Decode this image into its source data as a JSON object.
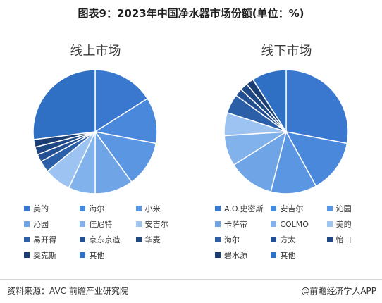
{
  "title": "图表9：2023年中国净水器市场份额(单位：%)",
  "footer": {
    "source": "资料来源：AVC 前瞻产业研究院",
    "brand": "@前瞻经济学人APP"
  },
  "chart_data": [
    {
      "type": "pie",
      "title": "线上市场",
      "legend_columns": 3,
      "slices": [
        {
          "label": "美的",
          "value": 16,
          "color": "#3a78d0"
        },
        {
          "label": "海尔",
          "value": 12,
          "color": "#4a88db"
        },
        {
          "label": "小米",
          "value": 12,
          "color": "#5b96e2"
        },
        {
          "label": "沁园",
          "value": 10,
          "color": "#6fa4e7"
        },
        {
          "label": "佳尼特",
          "value": 7,
          "color": "#82b2ec"
        },
        {
          "label": "安吉尔",
          "value": 7,
          "color": "#9cc3f2"
        },
        {
          "label": "易开得",
          "value": 3,
          "color": "#2b5fa8"
        },
        {
          "label": "京东京造",
          "value": 2,
          "color": "#244f92"
        },
        {
          "label": "华麦",
          "value": 2,
          "color": "#1f4783"
        },
        {
          "label": "奥克斯",
          "value": 2,
          "color": "#1a3e74"
        },
        {
          "label": "其他",
          "value": 27,
          "color": "#2f6fc4"
        }
      ]
    },
    {
      "type": "pie",
      "title": "线下市场",
      "legend_columns": 3,
      "slices": [
        {
          "label": "A.O.史密斯",
          "value": 28,
          "color": "#3a78d0"
        },
        {
          "label": "安吉尔",
          "value": 14,
          "color": "#4a88db"
        },
        {
          "label": "沁园",
          "value": 12,
          "color": "#5b96e2"
        },
        {
          "label": "卡萨帝",
          "value": 12,
          "color": "#6fa4e7"
        },
        {
          "label": "COLMO",
          "value": 8,
          "color": "#82b2ec"
        },
        {
          "label": "美的",
          "value": 6,
          "color": "#9cc3f2"
        },
        {
          "label": "海尔",
          "value": 5,
          "color": "#2b5fa8"
        },
        {
          "label": "方太",
          "value": 2,
          "color": "#244f92"
        },
        {
          "label": "怡口",
          "value": 2,
          "color": "#1f4783"
        },
        {
          "label": "碧水源",
          "value": 2,
          "color": "#1a3e74"
        },
        {
          "label": "其他",
          "value": 9,
          "color": "#2f6fc4"
        }
      ]
    }
  ]
}
